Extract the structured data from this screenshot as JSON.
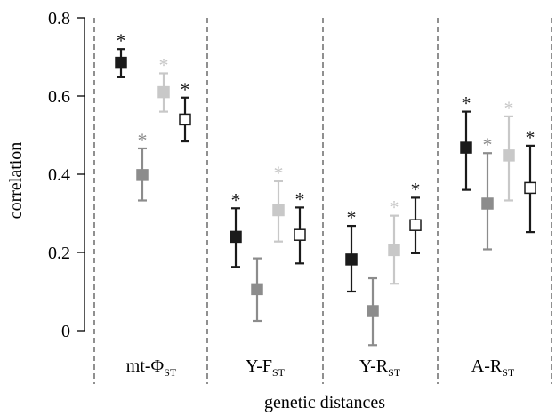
{
  "chart_data": {
    "type": "scatter",
    "xlabel": "genetic distances",
    "ylabel": "correlation",
    "ylim": [
      -0.07,
      0.8
    ],
    "yticks": [
      "0",
      "0.2",
      "0.4",
      "0.6",
      "0.8"
    ],
    "ytick_values": [
      0,
      0.2,
      0.4,
      0.6,
      0.8
    ],
    "grid": false,
    "groups": [
      {
        "name": "mt-Φ",
        "sub": "ST"
      },
      {
        "name": "Y-F",
        "sub": "ST"
      },
      {
        "name": "Y-R",
        "sub": "ST"
      },
      {
        "name": "A-R",
        "sub": "ST"
      }
    ],
    "series": [
      {
        "color": "#1a1a1a",
        "fill": "#1a1a1a",
        "values": [
          0.685,
          0.24,
          0.182,
          0.468
        ],
        "lower": [
          0.648,
          0.163,
          0.1,
          0.36
        ],
        "upper": [
          0.72,
          0.313,
          0.268,
          0.56
        ],
        "significant": [
          true,
          true,
          true,
          true
        ]
      },
      {
        "color": "#8c8c8c",
        "fill": "#8c8c8c",
        "values": [
          0.398,
          0.106,
          0.05,
          0.325
        ],
        "lower": [
          0.333,
          0.025,
          -0.037,
          0.208
        ],
        "upper": [
          0.466,
          0.185,
          0.134,
          0.454
        ],
        "significant": [
          true,
          false,
          false,
          true
        ]
      },
      {
        "color": "#c8c8c8",
        "fill": "#c8c8c8",
        "values": [
          0.61,
          0.308,
          0.206,
          0.448
        ],
        "lower": [
          0.56,
          0.228,
          0.12,
          0.333
        ],
        "upper": [
          0.658,
          0.382,
          0.294,
          0.548
        ],
        "significant": [
          true,
          true,
          true,
          true
        ]
      },
      {
        "color": "#1a1a1a",
        "fill": "#ffffff",
        "values": [
          0.54,
          0.245,
          0.27,
          0.365
        ],
        "lower": [
          0.484,
          0.172,
          0.198,
          0.252
        ],
        "upper": [
          0.596,
          0.315,
          0.34,
          0.473
        ],
        "significant": [
          true,
          true,
          true,
          true
        ]
      }
    ],
    "star_symbol": "*"
  }
}
